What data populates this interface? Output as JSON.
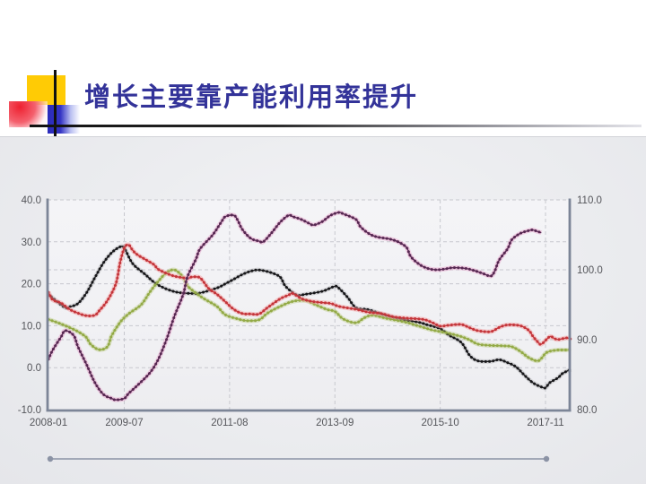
{
  "slide": {
    "title": "增长主要靠产能利用率提升",
    "title_color": "#333399",
    "decoration": {
      "yellow_square": "#FFCB05",
      "red_square": "#EE2130",
      "blue_square": "#3434C4",
      "cross_line": "#111111"
    }
  },
  "chart_data": {
    "type": "line",
    "title": "",
    "legend": "none",
    "grid": "dashed",
    "x_axis": {
      "start": "2008-01",
      "end": "2018-05",
      "tick_labels": [
        "2008-01",
        "2009-07",
        "2011-08",
        "2013-09",
        "2015-10",
        "2017-11"
      ]
    },
    "left_axis": {
      "min": -10,
      "max": 40,
      "tick_values": [
        40,
        30,
        20,
        10,
        0,
        -10
      ],
      "tick_labels": [
        "40.0",
        "30.0",
        "20.0",
        "10.0",
        "0.0",
        "-10.0"
      ]
    },
    "right_axis": {
      "min": 80,
      "max": 110,
      "tick_values": [
        110,
        100,
        90,
        80
      ],
      "tick_labels": [
        "110.0",
        "100.0",
        "90.0",
        "80.0"
      ]
    },
    "series": [
      {
        "name": "black-series",
        "axis": "left",
        "color": "#17171a",
        "glow": "rgba(90,90,95,0.18)",
        "points": [
          [
            "2008-01",
            17.5
          ],
          [
            "2008-03",
            15.8
          ],
          [
            "2008-05",
            14.3
          ],
          [
            "2008-06",
            14.5
          ],
          [
            "2008-08",
            15.3
          ],
          [
            "2008-10",
            17.8
          ],
          [
            "2008-12",
            21.4
          ],
          [
            "2009-02",
            24.9
          ],
          [
            "2009-04",
            27.4
          ],
          [
            "2009-06",
            28.8
          ],
          [
            "2009-07",
            28.5
          ],
          [
            "2009-09",
            24.8
          ],
          [
            "2009-12",
            22.2
          ],
          [
            "2010-02",
            20.4
          ],
          [
            "2010-04",
            19.2
          ],
          [
            "2010-06",
            18.4
          ],
          [
            "2010-08",
            17.9
          ],
          [
            "2010-11",
            17.7
          ],
          [
            "2011-01",
            17.8
          ],
          [
            "2011-05",
            19.0
          ],
          [
            "2011-07",
            20.0
          ],
          [
            "2011-09",
            21.1
          ],
          [
            "2011-11",
            22.2
          ],
          [
            "2012-01",
            23.0
          ],
          [
            "2012-03",
            23.3
          ],
          [
            "2012-06",
            22.6
          ],
          [
            "2012-08",
            21.6
          ],
          [
            "2012-09",
            19.8
          ],
          [
            "2012-10",
            18.7
          ],
          [
            "2012-12",
            17.3
          ],
          [
            "2013-02",
            17.5
          ],
          [
            "2013-06",
            18.2
          ],
          [
            "2013-09",
            19.4
          ],
          [
            "2013-10",
            18.9
          ],
          [
            "2013-12",
            16.8
          ],
          [
            "2014-02",
            14.3
          ],
          [
            "2014-05",
            13.8
          ],
          [
            "2014-09",
            12.5
          ],
          [
            "2015-01",
            11.5
          ],
          [
            "2015-05",
            10.8
          ],
          [
            "2015-07",
            10.2
          ],
          [
            "2015-10",
            9.3
          ],
          [
            "2015-12",
            7.8
          ],
          [
            "2016-03",
            6.0
          ],
          [
            "2016-05",
            2.9
          ],
          [
            "2016-07",
            1.6
          ],
          [
            "2016-10",
            1.5
          ],
          [
            "2016-12",
            1.9
          ],
          [
            "2017-02",
            1.2
          ],
          [
            "2017-04",
            0.2
          ],
          [
            "2017-06",
            -1.8
          ],
          [
            "2017-08",
            -3.6
          ],
          [
            "2017-10",
            -4.6
          ],
          [
            "2017-11",
            -4.8
          ],
          [
            "2017-12",
            -3.6
          ],
          [
            "2018-02",
            -2.4
          ],
          [
            "2018-03",
            -1.4
          ],
          [
            "2018-05",
            -0.4
          ]
        ]
      },
      {
        "name": "green-series",
        "axis": "left",
        "color": "#93aa46",
        "glow": "rgba(170,190,95,0.35)",
        "points": [
          [
            "2008-01",
            11.5
          ],
          [
            "2008-03",
            10.8
          ],
          [
            "2008-05",
            10.0
          ],
          [
            "2008-08",
            8.6
          ],
          [
            "2008-10",
            7.2
          ],
          [
            "2008-11",
            5.6
          ],
          [
            "2009-01",
            4.3
          ],
          [
            "2009-03",
            5.0
          ],
          [
            "2009-04",
            7.6
          ],
          [
            "2009-06",
            10.8
          ],
          [
            "2009-08",
            12.8
          ],
          [
            "2009-11",
            15.0
          ],
          [
            "2010-01",
            17.9
          ],
          [
            "2010-03",
            20.5
          ],
          [
            "2010-05",
            22.6
          ],
          [
            "2010-07",
            23.3
          ],
          [
            "2010-09",
            21.5
          ],
          [
            "2010-10",
            19.5
          ],
          [
            "2010-12",
            17.8
          ],
          [
            "2011-02",
            16.4
          ],
          [
            "2011-05",
            14.6
          ],
          [
            "2011-07",
            12.6
          ],
          [
            "2011-10",
            11.6
          ],
          [
            "2011-12",
            11.2
          ],
          [
            "2012-03",
            11.4
          ],
          [
            "2012-05",
            13.0
          ],
          [
            "2012-08",
            14.6
          ],
          [
            "2012-11",
            15.8
          ],
          [
            "2013-02",
            16.0
          ],
          [
            "2013-04",
            15.2
          ],
          [
            "2013-07",
            13.9
          ],
          [
            "2013-09",
            13.4
          ],
          [
            "2013-11",
            11.6
          ],
          [
            "2014-02",
            10.7
          ],
          [
            "2014-04",
            11.9
          ],
          [
            "2014-06",
            12.5
          ],
          [
            "2014-09",
            11.8
          ],
          [
            "2014-11",
            11.4
          ],
          [
            "2015-02",
            10.8
          ],
          [
            "2015-04",
            10.2
          ],
          [
            "2015-06",
            9.6
          ],
          [
            "2015-08",
            9.0
          ],
          [
            "2015-10",
            8.6
          ],
          [
            "2015-12",
            8.2
          ],
          [
            "2016-03",
            7.4
          ],
          [
            "2016-05",
            6.6
          ],
          [
            "2016-07",
            5.6
          ],
          [
            "2016-10",
            5.3
          ],
          [
            "2017-01",
            5.2
          ],
          [
            "2017-03",
            5.0
          ],
          [
            "2017-05",
            3.9
          ],
          [
            "2017-07",
            2.4
          ],
          [
            "2017-09",
            1.6
          ],
          [
            "2017-10",
            2.2
          ],
          [
            "2017-11",
            3.4
          ],
          [
            "2017-12",
            3.9
          ],
          [
            "2018-02",
            4.2
          ],
          [
            "2018-04",
            4.2
          ],
          [
            "2018-05",
            4.3
          ]
        ]
      },
      {
        "name": "red-series",
        "axis": "left",
        "color": "#c4353a",
        "glow": "rgba(243,155,158,0.5)",
        "points": [
          [
            "2008-01",
            18.0
          ],
          [
            "2008-02",
            16.2
          ],
          [
            "2008-04",
            15.4
          ],
          [
            "2008-06",
            13.9
          ],
          [
            "2008-08",
            13.0
          ],
          [
            "2008-10",
            12.4
          ],
          [
            "2008-12",
            12.5
          ],
          [
            "2009-01",
            13.5
          ],
          [
            "2009-03",
            16.0
          ],
          [
            "2009-05",
            20.0
          ],
          [
            "2009-06",
            25.0
          ],
          [
            "2009-07",
            28.5
          ],
          [
            "2009-08",
            29.3
          ],
          [
            "2009-09",
            28.0
          ],
          [
            "2009-10",
            27.0
          ],
          [
            "2009-12",
            25.8
          ],
          [
            "2010-02",
            24.6
          ],
          [
            "2010-03",
            23.5
          ],
          [
            "2010-05",
            22.5
          ],
          [
            "2010-07",
            21.8
          ],
          [
            "2010-10",
            21.3
          ],
          [
            "2010-11",
            21.6
          ],
          [
            "2011-01",
            21.4
          ],
          [
            "2011-03",
            18.9
          ],
          [
            "2011-05",
            17.5
          ],
          [
            "2011-07",
            15.7
          ],
          [
            "2011-09",
            13.9
          ],
          [
            "2011-11",
            12.9
          ],
          [
            "2012-01",
            12.8
          ],
          [
            "2012-03",
            12.8
          ],
          [
            "2012-05",
            14.3
          ],
          [
            "2012-08",
            16.4
          ],
          [
            "2012-10",
            17.3
          ],
          [
            "2012-11",
            17.7
          ],
          [
            "2013-01",
            16.5
          ],
          [
            "2013-03",
            15.9
          ],
          [
            "2013-05",
            15.6
          ],
          [
            "2013-08",
            15.3
          ],
          [
            "2013-10",
            14.6
          ],
          [
            "2014-02",
            13.9
          ],
          [
            "2014-05",
            13.2
          ],
          [
            "2014-08",
            12.9
          ],
          [
            "2014-11",
            12.1
          ],
          [
            "2015-02",
            11.8
          ],
          [
            "2015-06",
            11.5
          ],
          [
            "2015-08",
            10.8
          ],
          [
            "2015-10",
            9.9
          ],
          [
            "2015-12",
            10.1
          ],
          [
            "2016-03",
            10.3
          ],
          [
            "2016-05",
            9.5
          ],
          [
            "2016-07",
            8.8
          ],
          [
            "2016-10",
            8.6
          ],
          [
            "2016-12",
            9.6
          ],
          [
            "2017-02",
            10.2
          ],
          [
            "2017-05",
            10.0
          ],
          [
            "2017-07",
            8.9
          ],
          [
            "2017-08",
            7.5
          ],
          [
            "2017-09",
            6.3
          ],
          [
            "2017-10",
            5.6
          ],
          [
            "2017-12",
            7.4
          ],
          [
            "2018-01",
            7.0
          ],
          [
            "2018-02",
            6.7
          ],
          [
            "2018-04",
            7.1
          ],
          [
            "2018-05",
            6.8
          ]
        ]
      },
      {
        "name": "purple-series",
        "axis": "right",
        "color": "#572852",
        "glow": "rgba(226,142,190,0.42)",
        "points": [
          [
            "2008-01",
            87.2
          ],
          [
            "2008-02",
            88.5
          ],
          [
            "2008-04",
            90.4
          ],
          [
            "2008-05",
            91.3
          ],
          [
            "2008-07",
            90.6
          ],
          [
            "2008-08",
            89.0
          ],
          [
            "2008-10",
            86.5
          ],
          [
            "2008-12",
            83.9
          ],
          [
            "2009-02",
            82.2
          ],
          [
            "2009-04",
            81.6
          ],
          [
            "2009-05",
            81.4
          ],
          [
            "2009-07",
            81.6
          ],
          [
            "2009-08",
            82.3
          ],
          [
            "2009-10",
            83.4
          ],
          [
            "2010-01",
            85.2
          ],
          [
            "2010-03",
            87.1
          ],
          [
            "2010-05",
            90.0
          ],
          [
            "2010-07",
            93.5
          ],
          [
            "2010-09",
            96.5
          ],
          [
            "2010-10",
            99.0
          ],
          [
            "2010-12",
            101.5
          ],
          [
            "2011-01",
            103.0
          ],
          [
            "2011-04",
            105.0
          ],
          [
            "2011-06",
            106.8
          ],
          [
            "2011-07",
            107.6
          ],
          [
            "2011-09",
            107.8
          ],
          [
            "2011-10",
            107.0
          ],
          [
            "2011-11",
            105.8
          ],
          [
            "2012-01",
            104.5
          ],
          [
            "2012-03",
            104.1
          ],
          [
            "2012-04",
            104.0
          ],
          [
            "2012-06",
            105.3
          ],
          [
            "2012-08",
            106.8
          ],
          [
            "2012-10",
            107.8
          ],
          [
            "2012-11",
            107.6
          ],
          [
            "2013-01",
            107.2
          ],
          [
            "2013-03",
            106.6
          ],
          [
            "2013-04",
            106.4
          ],
          [
            "2013-06",
            106.9
          ],
          [
            "2013-08",
            107.8
          ],
          [
            "2013-10",
            108.2
          ],
          [
            "2013-11",
            108.0
          ],
          [
            "2014-02",
            107.2
          ],
          [
            "2014-03",
            106.2
          ],
          [
            "2014-05",
            105.2
          ],
          [
            "2014-07",
            104.7
          ],
          [
            "2014-10",
            104.4
          ],
          [
            "2014-12",
            104.0
          ],
          [
            "2015-02",
            103.2
          ],
          [
            "2015-03",
            101.9
          ],
          [
            "2015-05",
            100.8
          ],
          [
            "2015-07",
            100.2
          ],
          [
            "2015-09",
            100.0
          ],
          [
            "2015-11",
            100.1
          ],
          [
            "2016-01",
            100.3
          ],
          [
            "2016-04",
            100.2
          ],
          [
            "2016-06",
            99.9
          ],
          [
            "2016-08",
            99.5
          ],
          [
            "2016-10",
            99.1
          ],
          [
            "2016-11",
            99.9
          ],
          [
            "2016-12",
            101.4
          ],
          [
            "2017-02",
            103.0
          ],
          [
            "2017-03",
            104.3
          ],
          [
            "2017-05",
            105.2
          ],
          [
            "2017-07",
            105.6
          ],
          [
            "2017-08",
            105.7
          ],
          [
            "2017-09",
            105.5
          ],
          [
            "2017-10",
            105.3
          ]
        ]
      }
    ]
  },
  "scrollbar": {
    "color": "#8b93a5"
  },
  "theme": {
    "panel_bg": "#ebecef",
    "plot_bg": "#f1f1f4",
    "grid_color": "#c7c8ce",
    "axis_color": "#7c8597",
    "label_color": "#54555a"
  }
}
